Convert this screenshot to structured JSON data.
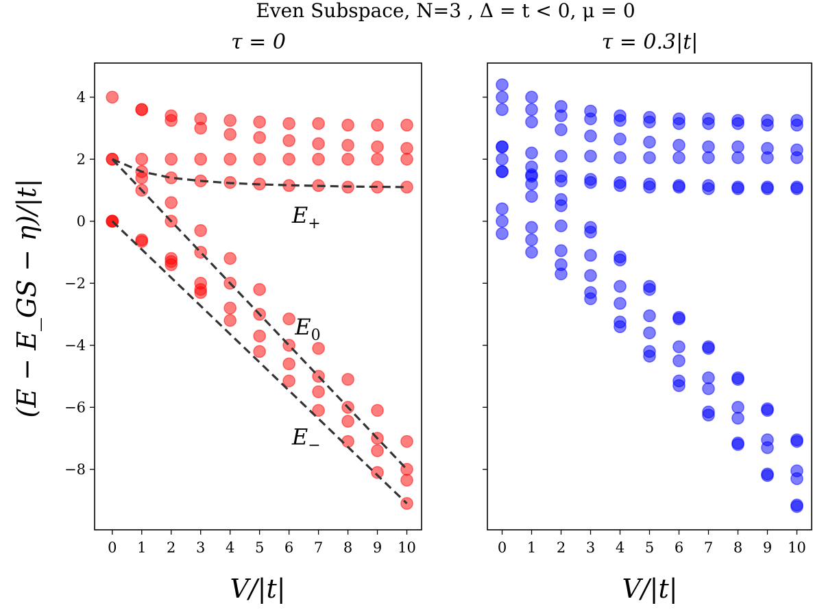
{
  "figure": {
    "suptitle": "Even Subspace, N=3 , Δ = t < 0, μ = 0",
    "ylabel": "(E − E_GS − η)/|t|",
    "xlabel": "V/|t|",
    "colors": {
      "left_points": "#ff0000",
      "right_points": "#0000ff",
      "fit_lines": "#333333"
    }
  },
  "chart_data": [
    {
      "type": "scatter",
      "title": "τ = 0",
      "xlabel": "V/|t|",
      "ylabel": "(E − E_GS − η)/|t|",
      "xlim": [
        -0.6,
        10.5
      ],
      "ylim": [
        -9.95,
        5.1
      ],
      "xticks": [
        0,
        1,
        2,
        3,
        4,
        5,
        6,
        7,
        8,
        9,
        10
      ],
      "yticks": [
        -8,
        -6,
        -4,
        -2,
        0,
        2,
        4
      ],
      "grid": false,
      "marker_color": "#ff0000",
      "levels": [
        [
          0,
          4,
          2,
          2,
          0,
          0
        ],
        [
          3.6,
          3.6,
          2.0,
          1.6,
          1.4,
          1.0,
          -0.6,
          -0.65
        ],
        [
          3.4,
          3.25,
          2.0,
          1.4,
          0.6,
          0.0,
          -1.2,
          -1.3,
          -1.4
        ],
        [
          3.3,
          3.0,
          2.0,
          1.3,
          -0.3,
          -1.0,
          -2.0,
          -2.2,
          -2.3
        ],
        [
          3.25,
          2.8,
          2.0,
          1.25,
          -1.2,
          -2.0,
          -2.8,
          -3.2
        ],
        [
          3.2,
          2.7,
          2.0,
          1.2,
          -2.2,
          -3.0,
          -3.7,
          -4.2
        ],
        [
          3.15,
          2.6,
          2.0,
          1.15,
          -3.15,
          -4.0,
          -4.6,
          -5.15
        ],
        [
          3.15,
          2.5,
          2.0,
          1.15,
          -4.1,
          -5.0,
          -5.5,
          -6.1
        ],
        [
          3.1,
          2.45,
          2.0,
          1.1,
          -5.1,
          -6.0,
          -6.45,
          -7.1
        ],
        [
          3.1,
          2.4,
          2.0,
          1.1,
          -6.1,
          -7.0,
          -7.4,
          -8.1
        ],
        [
          3.1,
          2.35,
          2.0,
          1.1,
          -7.1,
          -8.0,
          -8.35,
          -9.1
        ]
      ],
      "fit_lines": [
        {
          "name": "E_+",
          "x": [
            0,
            1,
            2,
            3,
            4,
            5,
            6,
            7,
            8,
            9,
            10
          ],
          "y": [
            2.0,
            1.6,
            1.4,
            1.3,
            1.23,
            1.19,
            1.16,
            1.14,
            1.12,
            1.11,
            1.1
          ]
        },
        {
          "name": "E_0",
          "x": [
            0,
            10
          ],
          "y": [
            2.0,
            -8.0
          ]
        },
        {
          "name": "E_−",
          "x": [
            0,
            10
          ],
          "y": [
            0.0,
            -9.1
          ]
        }
      ],
      "annotations": [
        {
          "text": "E+",
          "main": "E",
          "sub": "+",
          "x": 6.1,
          "y": -0.05
        },
        {
          "text": "E0",
          "main": "E",
          "sub": "0",
          "x": 6.2,
          "y": -3.65
        },
        {
          "text": "E−",
          "main": "E",
          "sub": "−",
          "x": 6.1,
          "y": -7.2
        }
      ]
    },
    {
      "type": "scatter",
      "title": "τ = 0.3|t|",
      "xlabel": "V/|t|",
      "xlim": [
        -0.5,
        10.5
      ],
      "ylim": [
        -9.95,
        5.1
      ],
      "xticks": [
        0,
        1,
        2,
        3,
        4,
        5,
        6,
        7,
        8,
        9,
        10
      ],
      "yticks": [
        -8,
        -6,
        -4,
        -2,
        0,
        2,
        4
      ],
      "grid": false,
      "marker_color": "#0000ff",
      "levels": [
        [
          4.4,
          4.0,
          3.6,
          2.4,
          2.4,
          2.0,
          1.6,
          1.6,
          0.4,
          0.0,
          -0.4
        ],
        [
          4.0,
          3.6,
          3.2,
          2.2,
          1.75,
          1.5,
          1.45,
          1.2,
          0.8,
          -0.2,
          -0.6,
          -1.0
        ],
        [
          3.7,
          3.4,
          2.95,
          2.1,
          1.45,
          1.3,
          0.7,
          0.5,
          -0.15,
          -0.95,
          -1.4,
          -1.7
        ],
        [
          3.55,
          3.3,
          2.75,
          2.1,
          1.35,
          1.25,
          -0.2,
          -0.35,
          -1.1,
          -1.75,
          -2.3,
          -2.5
        ],
        [
          3.4,
          3.25,
          2.65,
          2.05,
          1.25,
          1.15,
          -1.15,
          -1.25,
          -2.1,
          -2.65,
          -3.25,
          -3.4
        ],
        [
          3.35,
          3.2,
          2.55,
          2.05,
          1.2,
          1.1,
          -2.1,
          -2.2,
          -3.05,
          -3.6,
          -4.2,
          -4.35
        ],
        [
          3.3,
          3.15,
          2.45,
          2.05,
          1.15,
          1.1,
          -3.1,
          -3.15,
          -4.05,
          -4.5,
          -5.15,
          -5.3
        ],
        [
          3.3,
          3.15,
          2.4,
          2.05,
          1.15,
          1.05,
          -4.05,
          -4.1,
          -5.05,
          -5.4,
          -6.15,
          -6.25
        ],
        [
          3.25,
          3.15,
          2.4,
          2.05,
          1.1,
          1.05,
          -5.05,
          -5.1,
          -6.0,
          -6.35,
          -7.15,
          -7.2
        ],
        [
          3.25,
          3.1,
          2.35,
          2.05,
          1.1,
          1.05,
          -6.05,
          -6.1,
          -7.05,
          -7.3,
          -8.15,
          -8.2
        ],
        [
          3.25,
          3.1,
          2.3,
          2.05,
          1.1,
          1.05,
          -7.05,
          -7.1,
          -8.05,
          -8.3,
          -9.15,
          -9.2
        ]
      ]
    }
  ]
}
